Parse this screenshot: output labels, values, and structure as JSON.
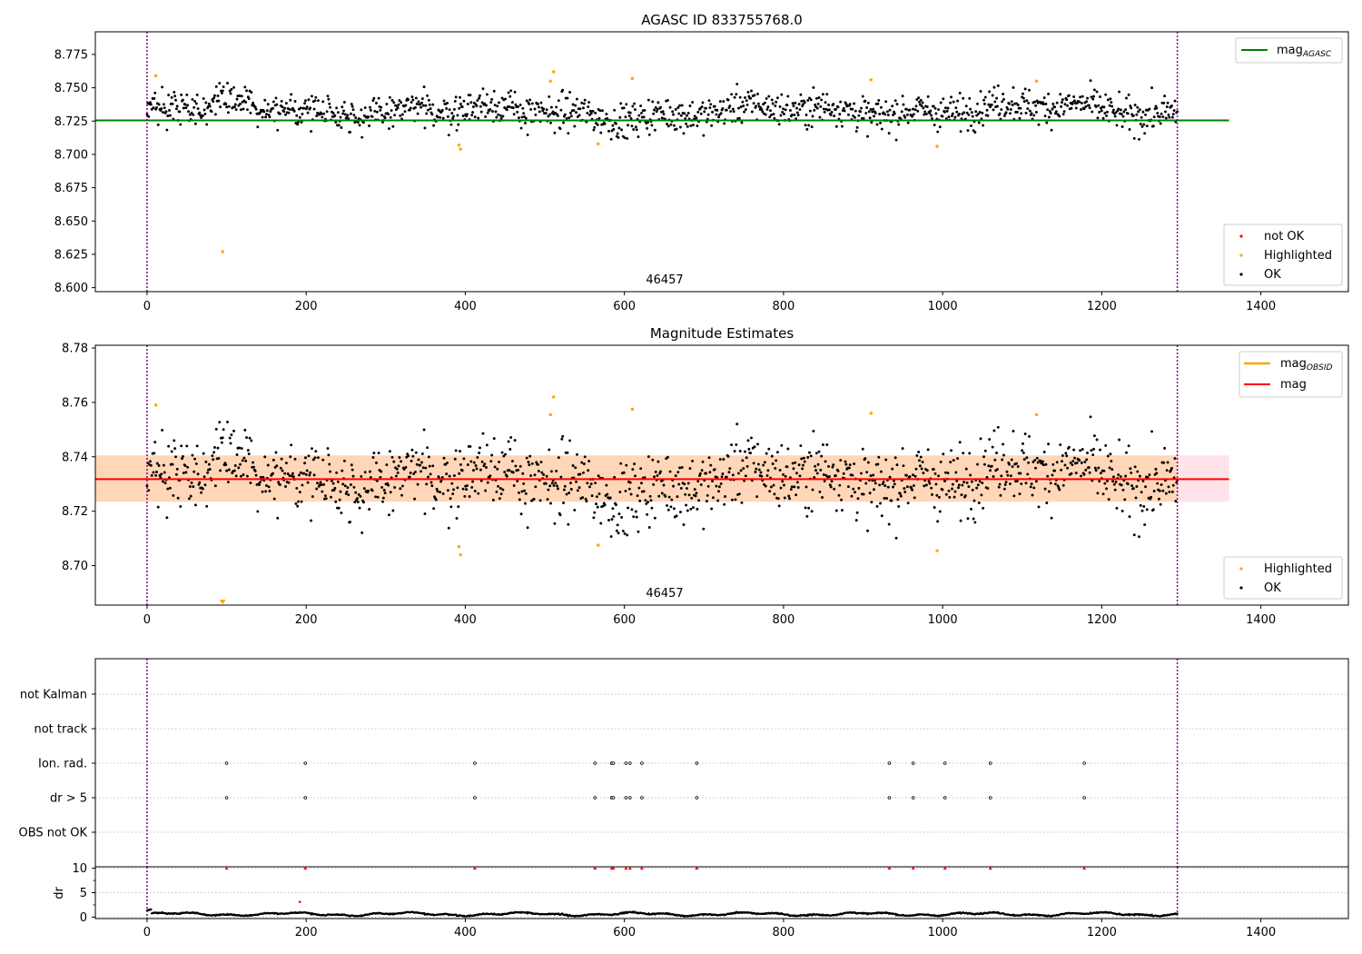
{
  "figure": {
    "title": "AGASC ID 833755768.0",
    "obsid_label": "46457"
  },
  "colors": {
    "ok": "#000000",
    "highlighted": "#ffa500",
    "not_ok": "#ff0000",
    "mag_agasc_line": "#008000",
    "mag_obsid_line": "#ffa500",
    "mag_line": "#ff0000",
    "band_mag": "#ffc0cb",
    "band_obsid": "#ffd3a8",
    "observation_edge": "#800080"
  },
  "chart_data": [
    {
      "id": "magnitude",
      "type": "scatter",
      "title": "",
      "xlim": [
        -65,
        1510
      ],
      "ylim": [
        8.597,
        8.792
      ],
      "xticks": [
        0,
        200,
        400,
        600,
        800,
        1000,
        1200,
        1400
      ],
      "yticks": [
        "8.600",
        "8.625",
        "8.650",
        "8.675",
        "8.700",
        "8.725",
        "8.750",
        "8.775"
      ],
      "grid": false,
      "horizontal_lines": [
        {
          "name": "mag_AGASC",
          "y": 8.7255,
          "x": [
            -65,
            1360
          ]
        }
      ],
      "observation_boundaries": [
        0,
        1295
      ],
      "ok_points_model": {
        "x_range": [
          0,
          1295
        ],
        "count": 1295,
        "median": 8.7325,
        "spread": 0.0075
      },
      "highlighted_points": [
        {
          "x": 11,
          "y": 8.759
        },
        {
          "x": 95,
          "y": 8.627
        },
        {
          "x": 392,
          "y": 8.707
        },
        {
          "x": 394,
          "y": 8.704
        },
        {
          "x": 507,
          "y": 8.755
        },
        {
          "x": 511,
          "y": 8.762
        },
        {
          "x": 567,
          "y": 8.708
        },
        {
          "x": 610,
          "y": 8.757
        },
        {
          "x": 910,
          "y": 8.756
        },
        {
          "x": 993,
          "y": 8.706
        },
        {
          "x": 1118,
          "y": 8.755
        }
      ],
      "legends": {
        "upper": {
          "position": "top-right",
          "entries": [
            {
              "label": "mag",
              "sub": "AGASC"
            }
          ]
        },
        "lower": {
          "position": "bottom-right",
          "entries": [
            {
              "label": "not OK"
            },
            {
              "label": "Highlighted"
            },
            {
              "label": "OK"
            }
          ]
        }
      }
    },
    {
      "id": "magnitude_estimates",
      "type": "scatter",
      "title": "Magnitude Estimates",
      "xlim": [
        -65,
        1510
      ],
      "ylim": [
        8.6855,
        8.781
      ],
      "xticks": [
        0,
        200,
        400,
        600,
        800,
        1000,
        1200,
        1400
      ],
      "yticks": [
        "8.70",
        "8.72",
        "8.74",
        "8.76",
        "8.78"
      ],
      "grid": false,
      "horizontal_lines": [
        {
          "name": "mag",
          "y": 8.7318,
          "x": [
            -65,
            1360
          ]
        },
        {
          "name": "mag_OBSID",
          "y": 8.7318,
          "x": [
            -65,
            1360
          ]
        }
      ],
      "bands": [
        {
          "name": "mag",
          "y": [
            8.7235,
            8.7405
          ],
          "x": [
            -65,
            1360
          ]
        },
        {
          "name": "mag_OBSID",
          "y": [
            8.7235,
            8.7405
          ],
          "x": [
            -65,
            1295
          ]
        }
      ],
      "observation_boundaries": [
        0,
        1295
      ],
      "ok_points_model": {
        "x_range": [
          0,
          1295
        ],
        "count": 1295,
        "median": 8.7318,
        "spread": 0.0075
      },
      "highlighted_points": [
        {
          "x": 11,
          "y": 8.759
        },
        {
          "x": 392,
          "y": 8.707
        },
        {
          "x": 394,
          "y": 8.704
        },
        {
          "x": 507,
          "y": 8.7555
        },
        {
          "x": 511,
          "y": 8.762
        },
        {
          "x": 567,
          "y": 8.7075
        },
        {
          "x": 610,
          "y": 8.7575
        },
        {
          "x": 910,
          "y": 8.756
        },
        {
          "x": 993,
          "y": 8.7055
        },
        {
          "x": 1118,
          "y": 8.7555
        }
      ],
      "clipped_markers": [
        {
          "x": 95
        }
      ],
      "legends": {
        "upper": {
          "position": "top-right",
          "entries": [
            {
              "label": "mag",
              "sub": "OBSID"
            },
            {
              "label": "mag"
            }
          ]
        },
        "lower": {
          "position": "bottom-right",
          "entries": [
            {
              "label": "Highlighted"
            },
            {
              "label": "OK"
            }
          ]
        }
      }
    },
    {
      "id": "flags",
      "type": "scatter",
      "title": "",
      "categories": [
        "not Kalman",
        "not track",
        "Ion. rad.",
        "dr > 5",
        "OBS not OK"
      ],
      "grid": true,
      "observation_boundaries": [
        0,
        1295
      ],
      "points": {
        "Ion. rad.": [
          100,
          199,
          412,
          563,
          584,
          586,
          602,
          607,
          622,
          691,
          933,
          963,
          1003,
          1060,
          1178
        ],
        "dr > 5": [
          100,
          199,
          412,
          563,
          584,
          586,
          602,
          607,
          622,
          691,
          933,
          963,
          1003,
          1060,
          1178
        ]
      }
    },
    {
      "id": "dr",
      "type": "scatter",
      "ylabel": "dr",
      "xlim": [
        -65,
        1510
      ],
      "ylim": [
        -0.3,
        10.3
      ],
      "yticks": [
        0,
        5,
        10
      ],
      "xticks": [
        0,
        200,
        400,
        600,
        800,
        1000,
        1200,
        1400
      ],
      "grid": true,
      "observation_boundaries": [
        0,
        1295
      ],
      "baseline_model": {
        "x_range": [
          0,
          1295
        ],
        "count": 1295,
        "median": 0.6,
        "spread": 0.25
      },
      "extra_points": [
        {
          "x": 192,
          "y": 3.1
        }
      ],
      "clipped_high_x": [
        100,
        199,
        412,
        563,
        584,
        586,
        602,
        607,
        622,
        691,
        933,
        963,
        1003,
        1060,
        1178
      ]
    }
  ]
}
